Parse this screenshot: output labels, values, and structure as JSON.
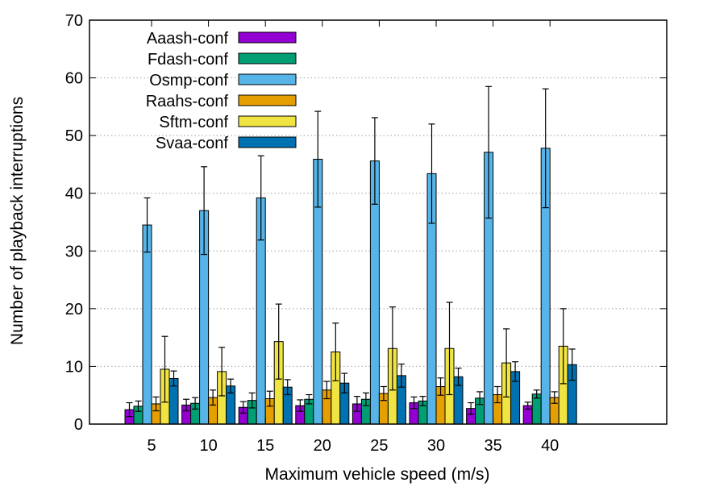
{
  "chart_data": {
    "type": "bar",
    "title": "",
    "xlabel": "Maximum vehicle speed (m/s)",
    "ylabel": "Number of playback interruptions",
    "ylim": [
      0,
      70
    ],
    "yticks": [
      0,
      10,
      20,
      30,
      40,
      50,
      60,
      70
    ],
    "grid": "horizontal dotted",
    "legend_position": "top-left",
    "categories": [
      "5",
      "10",
      "15",
      "20",
      "25",
      "30",
      "35",
      "40"
    ],
    "series": [
      {
        "name": "Aaash-conf",
        "color": "#9400d3",
        "values": [
          2.5,
          3.3,
          2.9,
          3.2,
          3.5,
          3.7,
          2.7,
          3.2
        ],
        "error": [
          1.2,
          1.0,
          1.0,
          1.0,
          1.3,
          1.0,
          1.0,
          0.6
        ]
      },
      {
        "name": "Fdash-conf",
        "color": "#009e73",
        "values": [
          3.1,
          3.6,
          4.1,
          4.3,
          4.3,
          4.0,
          4.5,
          5.2
        ],
        "error": [
          0.9,
          1.0,
          1.3,
          0.8,
          1.1,
          0.8,
          1.1,
          0.7
        ]
      },
      {
        "name": "Osmp-conf",
        "color": "#56b4e9",
        "values": [
          34.5,
          37.0,
          39.2,
          45.9,
          45.6,
          43.4,
          47.1,
          47.8
        ],
        "error": [
          4.7,
          7.6,
          7.3,
          8.3,
          7.5,
          8.6,
          11.4,
          10.3
        ]
      },
      {
        "name": "Raahs-conf",
        "color": "#e69f00",
        "values": [
          3.5,
          4.6,
          4.4,
          5.9,
          5.3,
          6.5,
          5.1,
          4.6
        ],
        "error": [
          1.2,
          1.3,
          1.3,
          1.5,
          1.2,
          1.5,
          1.4,
          1.0
        ]
      },
      {
        "name": "Sftm-conf",
        "color": "#f0e442",
        "values": [
          9.5,
          9.1,
          14.3,
          12.5,
          13.1,
          13.1,
          10.6,
          13.5
        ],
        "error": [
          5.7,
          4.2,
          6.5,
          5.0,
          7.2,
          8.0,
          5.9,
          6.5
        ]
      },
      {
        "name": "Svaa-conf",
        "color": "#0072b2",
        "values": [
          7.9,
          6.6,
          6.4,
          7.1,
          8.4,
          8.2,
          9.1,
          10.3
        ],
        "error": [
          1.3,
          1.2,
          1.3,
          1.7,
          2.0,
          1.5,
          1.7,
          2.7
        ]
      }
    ]
  }
}
